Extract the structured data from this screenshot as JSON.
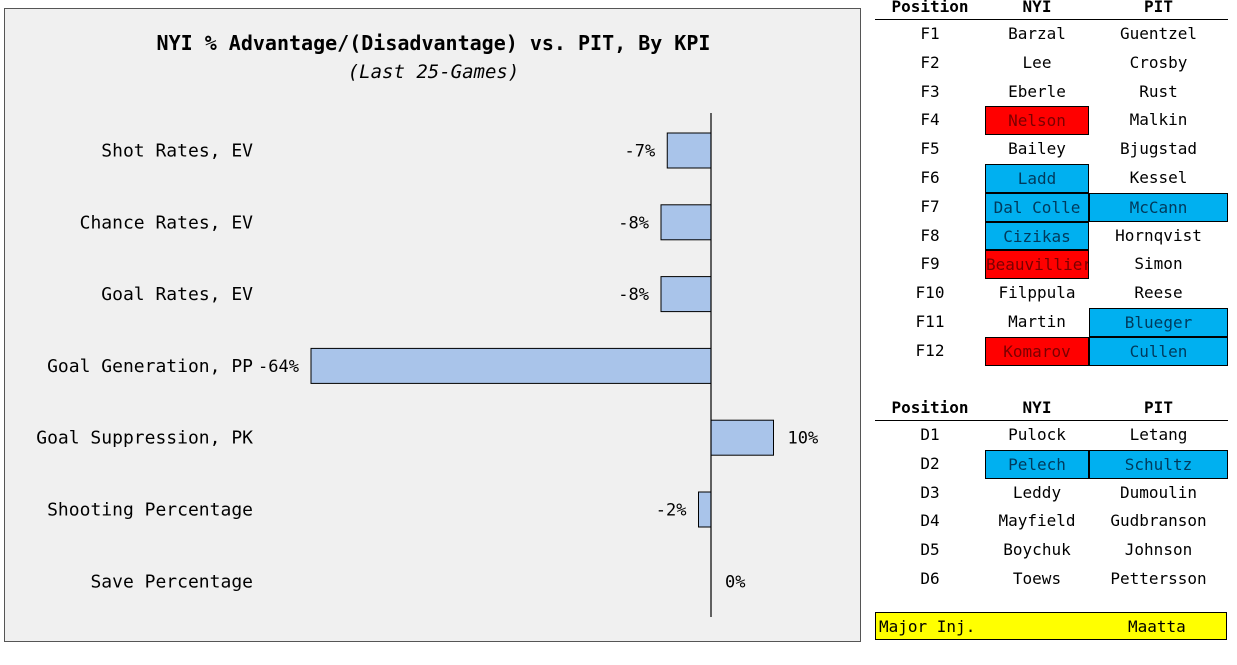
{
  "chart_data": {
    "type": "bar",
    "orientation": "horizontal",
    "title": "NYI % Advantage/(Disadvantage) vs. PIT, By KPI",
    "subtitle": "(Last 25-Games)",
    "categories": [
      "Shot Rates, EV",
      "Chance Rates, EV",
      "Goal Rates, EV",
      "Goal Generation, PP",
      "Goal Suppression, PK",
      "Shooting Percentage",
      "Save Percentage"
    ],
    "values": [
      -7,
      -8,
      -8,
      -64,
      10,
      -2,
      0
    ],
    "value_labels": [
      "-7%",
      "-8%",
      "-8%",
      "-64%",
      "10%",
      "-2%",
      "0%"
    ],
    "xlim": [
      -64,
      18
    ],
    "grid": false,
    "bar_color": "#a9c4ea"
  },
  "forwards": {
    "headers": [
      "Position",
      "NYI",
      "PIT"
    ],
    "rows": [
      {
        "pos": "F1",
        "nyi": "Barzal",
        "pit": "Guentzel",
        "nyi_hl": "",
        "pit_hl": ""
      },
      {
        "pos": "F2",
        "nyi": "Lee",
        "pit": "Crosby",
        "nyi_hl": "",
        "pit_hl": ""
      },
      {
        "pos": "F3",
        "nyi": "Eberle",
        "pit": "Rust",
        "nyi_hl": "",
        "pit_hl": ""
      },
      {
        "pos": "F4",
        "nyi": "Nelson",
        "pit": "Malkin",
        "nyi_hl": "red",
        "pit_hl": ""
      },
      {
        "pos": "F5",
        "nyi": "Bailey",
        "pit": "Bjugstad",
        "nyi_hl": "",
        "pit_hl": ""
      },
      {
        "pos": "F6",
        "nyi": "Ladd",
        "pit": "Kessel",
        "nyi_hl": "blue",
        "pit_hl": ""
      },
      {
        "pos": "F7",
        "nyi": "Dal Colle",
        "pit": "McCann",
        "nyi_hl": "blue",
        "pit_hl": "blue"
      },
      {
        "pos": "F8",
        "nyi": "Cizikas",
        "pit": "Hornqvist",
        "nyi_hl": "blue",
        "pit_hl": ""
      },
      {
        "pos": "F9",
        "nyi": "Beauvillier",
        "pit": "Simon",
        "nyi_hl": "red",
        "pit_hl": ""
      },
      {
        "pos": "F10",
        "nyi": "Filppula",
        "pit": "Reese",
        "nyi_hl": "",
        "pit_hl": ""
      },
      {
        "pos": "F11",
        "nyi": "Martin",
        "pit": "Blueger",
        "nyi_hl": "",
        "pit_hl": "blue"
      },
      {
        "pos": "F12",
        "nyi": "Komarov",
        "pit": "Cullen",
        "nyi_hl": "red",
        "pit_hl": "blue"
      }
    ]
  },
  "defense": {
    "headers": [
      "Position",
      "NYI",
      "PIT"
    ],
    "rows": [
      {
        "pos": "D1",
        "nyi": "Pulock",
        "pit": "Letang",
        "nyi_hl": "",
        "pit_hl": ""
      },
      {
        "pos": "D2",
        "nyi": "Pelech",
        "pit": "Schultz",
        "nyi_hl": "blue",
        "pit_hl": "blue"
      },
      {
        "pos": "D3",
        "nyi": "Leddy",
        "pit": "Dumoulin",
        "nyi_hl": "",
        "pit_hl": ""
      },
      {
        "pos": "D4",
        "nyi": "Mayfield",
        "pit": "Gudbranson",
        "nyi_hl": "",
        "pit_hl": ""
      },
      {
        "pos": "D5",
        "nyi": "Boychuk",
        "pit": "Johnson",
        "nyi_hl": "",
        "pit_hl": ""
      },
      {
        "pos": "D6",
        "nyi": "Toews",
        "pit": "Pettersson",
        "nyi_hl": "",
        "pit_hl": ""
      }
    ]
  },
  "injuries": {
    "label": "Major Inj.",
    "player": "Maatta",
    "color": "#ffff00"
  },
  "colors": {
    "red_highlight": "#ff0000",
    "blue_highlight": "#00b0f0"
  }
}
